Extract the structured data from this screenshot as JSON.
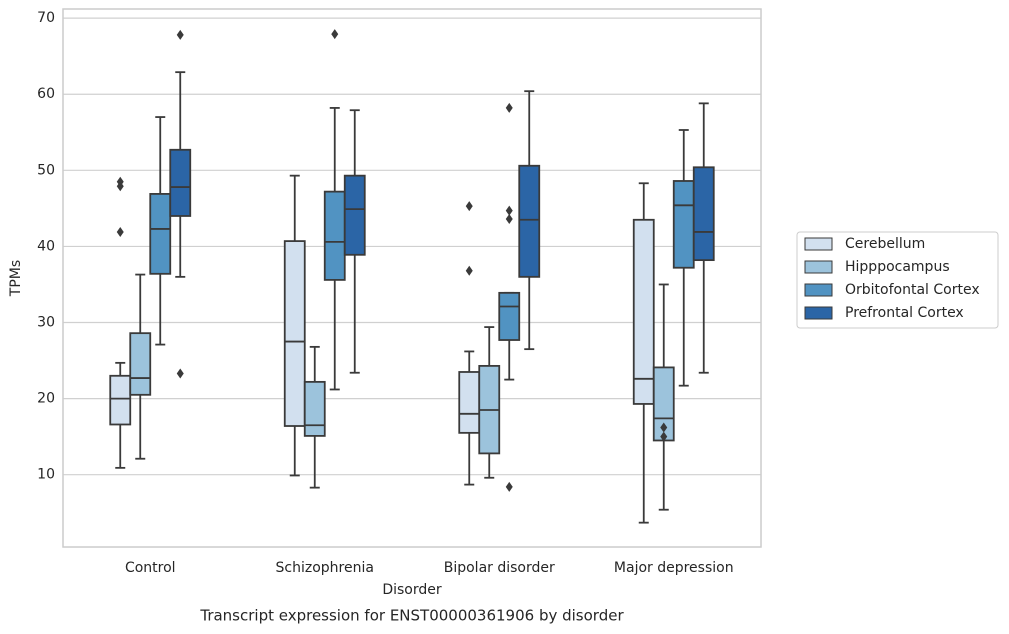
{
  "chart_data": {
    "type": "box",
    "title": "Transcript expression for ENST00000361906 by disorder",
    "x_label": "Disorder",
    "y_label": "TPMs",
    "categories": [
      "Control",
      "Schizophrenia",
      "Bipolar disorder",
      "Major depression"
    ],
    "ylim": [
      0.5,
      71.2
    ],
    "yticks": [
      10,
      20,
      30,
      40,
      50,
      60,
      70
    ],
    "grid": true,
    "legend": "right",
    "series": [
      {
        "name": "Cerebellum",
        "color": "#d2e0ef",
        "boxes": [
          {
            "whislo": 10.9,
            "q1": 16.6,
            "med": 20.0,
            "q3": 23.0,
            "whishi": 24.7,
            "fliers": [
              48.5,
              47.9,
              41.9
            ]
          },
          {
            "whislo": 9.9,
            "q1": 16.4,
            "med": 27.5,
            "q3": 40.7,
            "whishi": 49.3,
            "fliers": []
          },
          {
            "whislo": 8.7,
            "q1": 15.5,
            "med": 18.0,
            "q3": 23.5,
            "whishi": 26.2,
            "fliers": [
              45.3,
              36.8
            ]
          },
          {
            "whislo": 3.7,
            "q1": 19.3,
            "med": 22.6,
            "q3": 43.5,
            "whishi": 48.3,
            "fliers": []
          }
        ]
      },
      {
        "name": "Hipppocampus",
        "color": "#9cc3dc",
        "boxes": [
          {
            "whislo": 12.1,
            "q1": 20.5,
            "med": 22.7,
            "q3": 28.6,
            "whishi": 36.3,
            "fliers": []
          },
          {
            "whislo": 8.3,
            "q1": 15.1,
            "med": 16.5,
            "q3": 22.2,
            "whishi": 26.8,
            "fliers": []
          },
          {
            "whislo": 9.6,
            "q1": 12.8,
            "med": 18.5,
            "q3": 24.3,
            "whishi": 29.4,
            "fliers": []
          },
          {
            "whislo": 5.4,
            "q1": 14.5,
            "med": 17.4,
            "q3": 24.1,
            "whishi": 35.0,
            "fliers": [
              16.2,
              15.0
            ]
          }
        ]
      },
      {
        "name": "Orbitofontal Cortex",
        "color": "#5193c2",
        "boxes": [
          {
            "whislo": 27.1,
            "q1": 36.4,
            "med": 42.3,
            "q3": 46.9,
            "whishi": 57.0,
            "fliers": []
          },
          {
            "whislo": 21.2,
            "q1": 35.6,
            "med": 40.6,
            "q3": 47.2,
            "whishi": 58.2,
            "fliers": [
              67.9
            ]
          },
          {
            "whislo": 22.5,
            "q1": 27.7,
            "med": 32.1,
            "q3": 33.9,
            "whishi": 33.9,
            "fliers": [
              58.2,
              44.7,
              43.6,
              8.4
            ]
          },
          {
            "whislo": 21.7,
            "q1": 37.2,
            "med": 45.4,
            "q3": 48.6,
            "whishi": 55.3,
            "fliers": []
          }
        ]
      },
      {
        "name": "Prefrontal Cortex",
        "color": "#2b65a6",
        "boxes": [
          {
            "whislo": 36.0,
            "q1": 44.0,
            "med": 47.8,
            "q3": 52.7,
            "whishi": 62.9,
            "fliers": [
              67.8,
              23.3
            ]
          },
          {
            "whislo": 23.4,
            "q1": 38.9,
            "med": 44.9,
            "q3": 49.3,
            "whishi": 57.9,
            "fliers": []
          },
          {
            "whislo": 26.5,
            "q1": 36.0,
            "med": 43.5,
            "q3": 50.6,
            "whishi": 60.4,
            "fliers": []
          },
          {
            "whislo": 23.4,
            "q1": 38.2,
            "med": 41.9,
            "q3": 50.4,
            "whishi": 58.8,
            "fliers": []
          }
        ]
      }
    ]
  }
}
